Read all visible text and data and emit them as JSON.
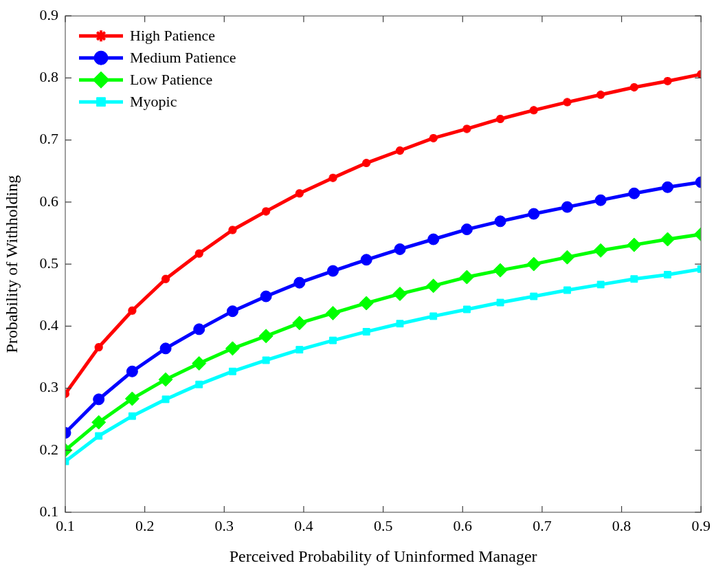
{
  "chart_data": {
    "type": "line",
    "xlabel": "Perceived Probability of Uninformed Manager",
    "ylabel": "Probability of Withholding",
    "x": [
      0.1,
      0.1421,
      0.1842,
      0.2263,
      0.2684,
      0.3105,
      0.3526,
      0.3947,
      0.4368,
      0.4789,
      0.5211,
      0.5632,
      0.6053,
      0.6474,
      0.6895,
      0.7316,
      0.7737,
      0.8158,
      0.8579,
      0.9
    ],
    "series": [
      {
        "name": "High Patience",
        "color": "#ff0000",
        "marker": "cross",
        "values": [
          0.291,
          0.366,
          0.425,
          0.476,
          0.517,
          0.555,
          0.585,
          0.614,
          0.639,
          0.663,
          0.683,
          0.703,
          0.718,
          0.734,
          0.748,
          0.761,
          0.773,
          0.785,
          0.795,
          0.806
        ]
      },
      {
        "name": "Medium Patience",
        "color": "#0000ff",
        "marker": "circle",
        "values": [
          0.228,
          0.282,
          0.327,
          0.364,
          0.395,
          0.424,
          0.448,
          0.47,
          0.489,
          0.507,
          0.524,
          0.54,
          0.556,
          0.569,
          0.581,
          0.592,
          0.603,
          0.614,
          0.624,
          0.632
        ]
      },
      {
        "name": "Low Patience",
        "color": "#00ff00",
        "marker": "diamond",
        "values": [
          0.2,
          0.245,
          0.283,
          0.314,
          0.34,
          0.364,
          0.384,
          0.405,
          0.421,
          0.437,
          0.452,
          0.465,
          0.479,
          0.49,
          0.5,
          0.511,
          0.522,
          0.531,
          0.54,
          0.548
        ]
      },
      {
        "name": "Myopic",
        "color": "#00ffff",
        "marker": "square",
        "values": [
          0.182,
          0.223,
          0.255,
          0.282,
          0.306,
          0.327,
          0.345,
          0.362,
          0.377,
          0.391,
          0.404,
          0.416,
          0.427,
          0.438,
          0.448,
          0.458,
          0.467,
          0.476,
          0.483,
          0.492
        ]
      }
    ],
    "xlim": [
      0.1,
      0.9
    ],
    "xticks": [
      0.1,
      0.2,
      0.3,
      0.4,
      0.5,
      0.6,
      0.7,
      0.8,
      0.9
    ],
    "ylim": [
      0.1,
      0.9
    ],
    "yticks": [
      0.1,
      0.2,
      0.3,
      0.4,
      0.5,
      0.6,
      0.7,
      0.8,
      0.9
    ],
    "grid": false,
    "legend": "top left",
    "line_style": "solid"
  }
}
